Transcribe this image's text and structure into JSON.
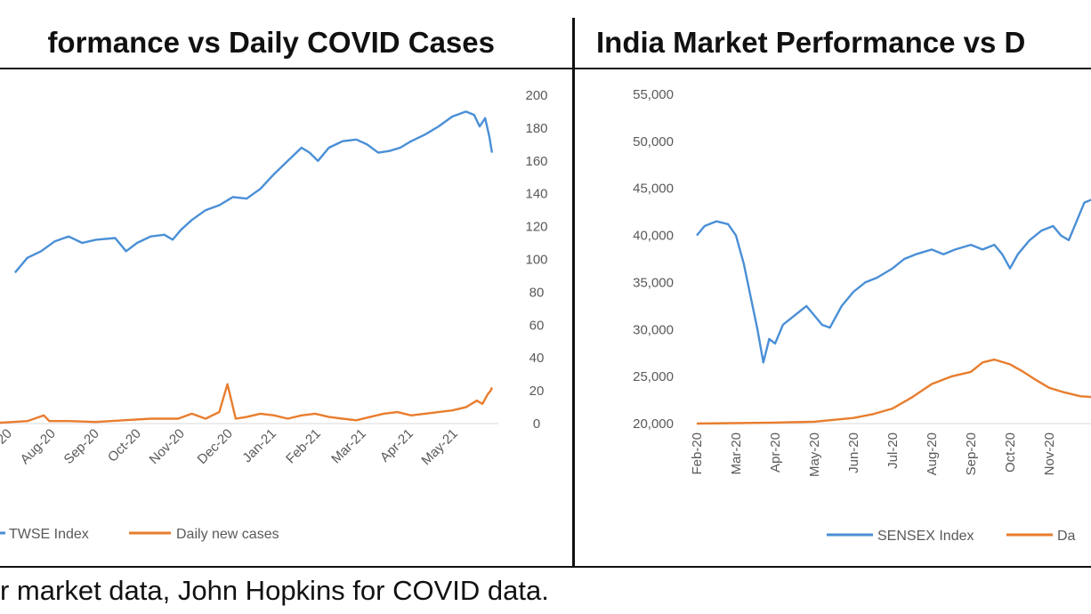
{
  "footnote": "r market data, John Hopkins for COVID data.",
  "chart_data": [
    {
      "type": "line",
      "title": "formance vs Daily COVID Cases",
      "x": [
        "Aug-20",
        "Sep-20",
        "Oct-20",
        "Nov-20",
        "Dec-20",
        "Jan-21",
        "Feb-21",
        "Mar-21",
        "Apr-21",
        "May-21"
      ],
      "x_partial_label": "20",
      "y_right_ticks": [
        0,
        20,
        40,
        60,
        80,
        100,
        120,
        140,
        160,
        180,
        200
      ],
      "ylim_right": [
        0,
        200
      ],
      "series": [
        {
          "name": "TWSE Index",
          "color": "#4a8fd6",
          "axis": "right",
          "values": [
            [
              0.55,
              92
            ],
            [
              1.0,
              101
            ],
            [
              1.5,
              105
            ],
            [
              2.0,
              111
            ],
            [
              2.5,
              114
            ],
            [
              3.0,
              110
            ],
            [
              3.5,
              112
            ],
            [
              4.2,
              113
            ],
            [
              4.6,
              105
            ],
            [
              5.0,
              110
            ],
            [
              5.5,
              114
            ],
            [
              6.0,
              115
            ],
            [
              6.3,
              112
            ],
            [
              6.6,
              118
            ],
            [
              7.0,
              124
            ],
            [
              7.5,
              130
            ],
            [
              8.0,
              133
            ],
            [
              8.5,
              138
            ],
            [
              9.0,
              137
            ],
            [
              9.5,
              143
            ],
            [
              10.0,
              152
            ],
            [
              10.5,
              160
            ],
            [
              11.0,
              168
            ],
            [
              11.3,
              165
            ],
            [
              11.6,
              160
            ],
            [
              12.0,
              168
            ],
            [
              12.5,
              172
            ],
            [
              13.0,
              173
            ],
            [
              13.4,
              170
            ],
            [
              13.8,
              165
            ],
            [
              14.2,
              166
            ],
            [
              14.6,
              168
            ],
            [
              15.0,
              172
            ],
            [
              15.5,
              176
            ],
            [
              16.0,
              181
            ],
            [
              16.5,
              187
            ],
            [
              17.0,
              190
            ],
            [
              17.3,
              188
            ],
            [
              17.5,
              181
            ],
            [
              17.7,
              186
            ],
            [
              17.85,
              175
            ],
            [
              17.95,
              165
            ]
          ]
        },
        {
          "name": "Daily new cases",
          "color": "#e87d2e",
          "axis": "right",
          "values": [
            [
              0,
              0.5
            ],
            [
              1,
              1.5
            ],
            [
              1.6,
              5
            ],
            [
              1.8,
              1.5
            ],
            [
              2.5,
              1.5
            ],
            [
              3.5,
              1
            ],
            [
              4.5,
              2
            ],
            [
              5.5,
              3
            ],
            [
              6.5,
              3
            ],
            [
              7.0,
              6
            ],
            [
              7.5,
              3
            ],
            [
              8.0,
              7
            ],
            [
              8.3,
              24
            ],
            [
              8.6,
              3
            ],
            [
              9.0,
              4
            ],
            [
              9.5,
              6
            ],
            [
              10.0,
              5
            ],
            [
              10.5,
              3
            ],
            [
              11.0,
              5
            ],
            [
              11.5,
              6
            ],
            [
              12.0,
              4
            ],
            [
              12.5,
              3
            ],
            [
              13.0,
              2
            ],
            [
              13.5,
              4
            ],
            [
              14.0,
              6
            ],
            [
              14.5,
              7
            ],
            [
              15.0,
              5
            ],
            [
              15.5,
              6
            ],
            [
              16.0,
              7
            ],
            [
              16.5,
              8
            ],
            [
              17.0,
              10
            ],
            [
              17.4,
              14
            ],
            [
              17.6,
              12
            ],
            [
              17.8,
              18
            ],
            [
              17.9,
              20
            ],
            [
              17.95,
              22
            ]
          ]
        }
      ]
    },
    {
      "type": "line",
      "title": "India Market Performance vs D",
      "x": [
        "Feb-20",
        "Mar-20",
        "Apr-20",
        "May-20",
        "Jun-20",
        "Jul-20",
        "Aug-20",
        "Sep-20",
        "Oct-20",
        "Nov-20"
      ],
      "y_ticks": [
        "20,000",
        "25,000",
        "30,000",
        "35,000",
        "40,000",
        "45,000",
        "50,000",
        "55,000"
      ],
      "ylim": [
        20000,
        55000
      ],
      "series": [
        {
          "name": "SENSEX Index",
          "color": "#4a8fd6",
          "values": [
            [
              0,
              40000
            ],
            [
              0.2,
              41000
            ],
            [
              0.5,
              41500
            ],
            [
              0.8,
              41200
            ],
            [
              1.0,
              40000
            ],
            [
              1.2,
              37000
            ],
            [
              1.4,
              33000
            ],
            [
              1.55,
              30000
            ],
            [
              1.7,
              26500
            ],
            [
              1.85,
              29000
            ],
            [
              2.0,
              28500
            ],
            [
              2.2,
              30500
            ],
            [
              2.5,
              31500
            ],
            [
              2.8,
              32500
            ],
            [
              3.0,
              31500
            ],
            [
              3.2,
              30500
            ],
            [
              3.4,
              30200
            ],
            [
              3.7,
              32500
            ],
            [
              4.0,
              34000
            ],
            [
              4.3,
              35000
            ],
            [
              4.6,
              35500
            ],
            [
              5.0,
              36500
            ],
            [
              5.3,
              37500
            ],
            [
              5.6,
              38000
            ],
            [
              6.0,
              38500
            ],
            [
              6.3,
              38000
            ],
            [
              6.6,
              38500
            ],
            [
              7.0,
              39000
            ],
            [
              7.3,
              38500
            ],
            [
              7.6,
              39000
            ],
            [
              7.8,
              38000
            ],
            [
              8.0,
              36500
            ],
            [
              8.2,
              38000
            ],
            [
              8.5,
              39500
            ],
            [
              8.8,
              40500
            ],
            [
              9.1,
              41000
            ],
            [
              9.3,
              40000
            ],
            [
              9.5,
              39500
            ],
            [
              9.7,
              41500
            ],
            [
              9.9,
              43500
            ],
            [
              10.2,
              44000
            ],
            [
              10.4,
              44500
            ],
            [
              10.5,
              45000
            ]
          ]
        },
        {
          "name": "Da",
          "color": "#e87d2e",
          "values": [
            [
              0,
              20000
            ],
            [
              1,
              20050
            ],
            [
              2,
              20100
            ],
            [
              3,
              20200
            ],
            [
              3.5,
              20400
            ],
            [
              4,
              20600
            ],
            [
              4.5,
              21000
            ],
            [
              5,
              21600
            ],
            [
              5.5,
              22800
            ],
            [
              6,
              24200
            ],
            [
              6.5,
              25000
            ],
            [
              7,
              25500
            ],
            [
              7.3,
              26500
            ],
            [
              7.6,
              26800
            ],
            [
              8.0,
              26300
            ],
            [
              8.3,
              25600
            ],
            [
              8.6,
              24800
            ],
            [
              9.0,
              23800
            ],
            [
              9.4,
              23300
            ],
            [
              9.8,
              22900
            ],
            [
              10.2,
              22800
            ],
            [
              10.5,
              22900
            ]
          ]
        }
      ]
    }
  ]
}
